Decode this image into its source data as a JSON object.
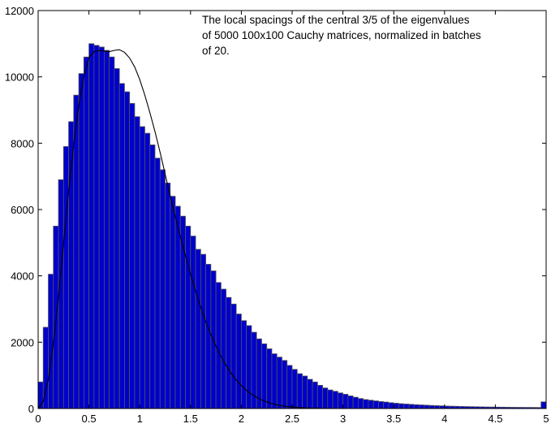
{
  "chart_data": {
    "type": "bar",
    "annotation": [
      "The local spacings of the central 3/5 of the eigenvalues",
      "of 5000 100x100 Cauchy matrices, normalized in batches",
      "of 20."
    ],
    "xlim": [
      0,
      5
    ],
    "ylim": [
      0,
      12000
    ],
    "x_ticks": [
      0,
      0.5,
      1,
      1.5,
      2,
      2.5,
      3,
      3.5,
      4,
      4.5,
      5
    ],
    "y_ticks": [
      0,
      2000,
      4000,
      6000,
      8000,
      10000,
      12000
    ],
    "x_tick_labels": [
      "0",
      "0.5",
      "1",
      "1.5",
      "2",
      "2.5",
      "3",
      "3.5",
      "4",
      "4.5",
      "5"
    ],
    "y_tick_labels": [
      "0",
      "2000",
      "4000",
      "6000",
      "8000",
      "10000",
      "12000"
    ],
    "bin_width": 0.05,
    "histogram": {
      "bin_centers": [
        0.025,
        0.075,
        0.125,
        0.175,
        0.225,
        0.275,
        0.325,
        0.375,
        0.425,
        0.475,
        0.525,
        0.575,
        0.625,
        0.675,
        0.725,
        0.775,
        0.825,
        0.875,
        0.925,
        0.975,
        1.025,
        1.075,
        1.125,
        1.175,
        1.225,
        1.275,
        1.325,
        1.375,
        1.425,
        1.475,
        1.525,
        1.575,
        1.625,
        1.675,
        1.725,
        1.775,
        1.825,
        1.875,
        1.925,
        1.975,
        2.025,
        2.075,
        2.125,
        2.175,
        2.225,
        2.275,
        2.325,
        2.375,
        2.425,
        2.475,
        2.525,
        2.575,
        2.625,
        2.675,
        2.725,
        2.775,
        2.825,
        2.875,
        2.925,
        2.975,
        3.025,
        3.075,
        3.125,
        3.175,
        3.225,
        3.275,
        3.325,
        3.375,
        3.425,
        3.475,
        3.525,
        3.575,
        3.625,
        3.675,
        3.725,
        3.775,
        3.825,
        3.875,
        3.925,
        3.975,
        4.025,
        4.075,
        4.125,
        4.175,
        4.225,
        4.275,
        4.325,
        4.375,
        4.425,
        4.475,
        4.525,
        4.575,
        4.625,
        4.675,
        4.725,
        4.775,
        4.825,
        4.875,
        4.925,
        4.975
      ],
      "values": [
        800,
        2450,
        4050,
        5500,
        6900,
        7900,
        8650,
        9450,
        10100,
        10600,
        11000,
        10950,
        10900,
        10800,
        10600,
        10250,
        9800,
        9550,
        9200,
        8800,
        8500,
        8300,
        7950,
        7550,
        7200,
        6800,
        6400,
        6100,
        5800,
        5500,
        5200,
        4800,
        4650,
        4350,
        4150,
        3800,
        3600,
        3350,
        3150,
        2850,
        2650,
        2500,
        2300,
        2100,
        1950,
        1800,
        1650,
        1550,
        1450,
        1300,
        1180,
        1050,
        980,
        880,
        800,
        700,
        620,
        560,
        520,
        470,
        430,
        380,
        340,
        300,
        270,
        250,
        230,
        210,
        195,
        175,
        160,
        145,
        135,
        125,
        115,
        108,
        100,
        92,
        86,
        80,
        74,
        70,
        66,
        62,
        58,
        55,
        52,
        49,
        46,
        44,
        42,
        40,
        38,
        36,
        35,
        34,
        33,
        32,
        31,
        200
      ],
      "bar_color": "#0000cc",
      "edge_color": "#555555"
    },
    "curve": {
      "x": [
        0,
        0.05,
        0.1,
        0.15,
        0.2,
        0.25,
        0.3,
        0.35,
        0.4,
        0.45,
        0.5,
        0.55,
        0.6,
        0.65,
        0.7,
        0.75,
        0.8,
        0.85,
        0.9,
        0.95,
        1.0,
        1.05,
        1.1,
        1.15,
        1.2,
        1.25,
        1.3,
        1.35,
        1.4,
        1.45,
        1.5,
        1.55,
        1.6,
        1.65,
        1.7,
        1.75,
        1.8,
        1.85,
        1.9,
        1.95,
        2.0,
        2.05,
        2.1,
        2.15,
        2.2,
        2.25,
        2.3,
        2.35,
        2.4,
        2.45,
        2.5,
        2.55,
        2.6,
        2.65,
        2.7,
        2.75,
        2.8,
        2.85,
        2.9,
        2.95,
        3.0,
        3.1,
        3.2,
        3.3,
        3.4,
        3.5,
        3.6,
        3.7,
        3.8,
        3.9,
        4.0,
        4.2,
        4.4,
        4.6,
        4.8,
        5.0
      ],
      "y": [
        0,
        220,
        890,
        1960,
        3370,
        4980,
        6560,
        7960,
        9140,
        10030,
        10580,
        10760,
        10800,
        10780,
        10760,
        10800,
        10820,
        10740,
        10570,
        10300,
        9920,
        9450,
        8920,
        8350,
        7730,
        7070,
        6410,
        5780,
        5180,
        4600,
        4050,
        3530,
        3050,
        2620,
        2230,
        1880,
        1570,
        1300,
        1060,
        860,
        690,
        550,
        430,
        340,
        260,
        200,
        150,
        112,
        82,
        60,
        44,
        31,
        22,
        15,
        11,
        7,
        5,
        3,
        2,
        1,
        1,
        0,
        0,
        0,
        0,
        0,
        0,
        0,
        0,
        0,
        0,
        0,
        0,
        0,
        0,
        0
      ],
      "color": "#000000"
    },
    "grid": false,
    "legend": "none"
  }
}
